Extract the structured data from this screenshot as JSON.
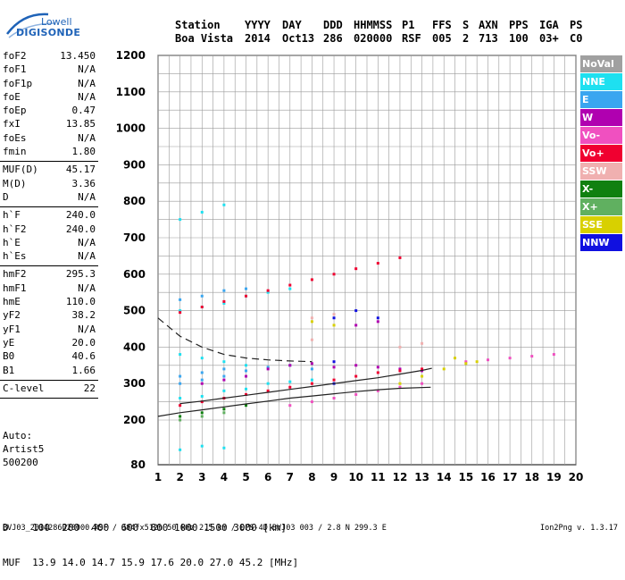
{
  "logo": {
    "brand": "Lowell",
    "name": "DIGISONDE"
  },
  "header": {
    "labels": [
      "Station",
      "YYYY",
      "DAY",
      "DDD",
      "HHMMSS",
      "P1",
      "FFS",
      "S",
      "AXN",
      "PPS",
      "IGA",
      "PS"
    ],
    "values": [
      "Boa Vista",
      "2014",
      "Oct13",
      "286",
      "020000",
      "RSF",
      "005",
      "2",
      "713",
      "100",
      "03+",
      "C0"
    ]
  },
  "params": [
    {
      "name": "foF2",
      "value": "13.450"
    },
    {
      "name": "foF1",
      "value": "N/A"
    },
    {
      "name": "foF1p",
      "value": "N/A"
    },
    {
      "name": "foE",
      "value": "N/A"
    },
    {
      "name": "foEp",
      "value": "0.47"
    },
    {
      "name": "fxI",
      "value": "13.85"
    },
    {
      "name": "foEs",
      "value": "N/A"
    },
    {
      "name": "fmin",
      "value": "1.80"
    },
    {
      "name": "MUF(D)",
      "value": "45.17"
    },
    {
      "name": "M(D)",
      "value": "3.36"
    },
    {
      "name": "D",
      "value": "N/A"
    },
    {
      "name": "h`F",
      "value": "240.0"
    },
    {
      "name": "h`F2",
      "value": "240.0"
    },
    {
      "name": "h`E",
      "value": "N/A"
    },
    {
      "name": "h`Es",
      "value": "N/A"
    },
    {
      "name": "hmF2",
      "value": "295.3"
    },
    {
      "name": "hmF1",
      "value": "N/A"
    },
    {
      "name": "hmE",
      "value": "110.0"
    },
    {
      "name": "yF2",
      "value": "38.2"
    },
    {
      "name": "yF1",
      "value": "N/A"
    },
    {
      "name": "yE",
      "value": "20.0"
    },
    {
      "name": "B0",
      "value": "40.6"
    },
    {
      "name": "B1",
      "value": "1.66"
    },
    {
      "name": "C-level",
      "value": "22"
    }
  ],
  "auto": {
    "label": "Auto:",
    "artist": "Artist5",
    "version": "500200"
  },
  "legend": [
    {
      "label": "NoVal",
      "color": "#a0a0a0"
    },
    {
      "label": "NNE",
      "color": "#1ee0f0"
    },
    {
      "label": "E",
      "color": "#3aa6f0"
    },
    {
      "label": "W",
      "color": "#b000b0"
    },
    {
      "label": "Vo-",
      "color": "#f050c0"
    },
    {
      "label": "Vo+",
      "color": "#f00030"
    },
    {
      "label": "SSW",
      "color": "#f0b0b0"
    },
    {
      "label": "X-",
      "color": "#108010"
    },
    {
      "label": "X+",
      "color": "#60b060"
    },
    {
      "label": "SSE",
      "color": "#d8d000"
    },
    {
      "label": "NNW",
      "color": "#1010e0"
    }
  ],
  "footer": {
    "d_row": "D    100  200  400  600  800 1000 1500 3000 [km]",
    "muf_row": "MUF  13.9 14.0 14.7 15.9 17.6 20.0 27.0 45.2 [MHz]",
    "file_line": "BVJ03_2014286020000.RSF / 384fx512h 50 kHz 2.5 km / DPS-4D BVJ03 003 / 2.8 N 299.3 E",
    "version": "Ion2Png v. 1.3.17"
  },
  "chart_data": {
    "type": "scatter",
    "title": "",
    "xlabel": "",
    "ylabel": "",
    "xlim": [
      1,
      20
    ],
    "ylim": [
      80,
      1200
    ],
    "xticks": [
      1,
      2,
      3,
      4,
      5,
      6,
      7,
      8,
      9,
      10,
      11,
      12,
      13,
      14,
      15,
      16,
      17,
      18,
      19,
      20
    ],
    "yticks": [
      80,
      200,
      300,
      400,
      500,
      600,
      700,
      800,
      900,
      1000,
      1100,
      1200
    ],
    "grid": true,
    "legend_position": "right",
    "series": [
      {
        "name": "NNE",
        "points": [
          [
            2,
            260
          ],
          [
            3,
            265
          ],
          [
            4,
            280
          ],
          [
            5,
            285
          ],
          [
            6,
            300
          ],
          [
            7,
            305
          ],
          [
            8,
            310
          ],
          [
            2,
            500
          ],
          [
            3,
            510
          ],
          [
            4,
            520
          ],
          [
            5,
            540
          ],
          [
            6,
            550
          ],
          [
            7,
            560
          ],
          [
            2,
            380
          ],
          [
            3,
            370
          ],
          [
            4,
            360
          ],
          [
            5,
            350
          ],
          [
            2,
            750
          ],
          [
            3,
            770
          ],
          [
            4,
            790
          ],
          [
            2,
            120
          ],
          [
            3,
            130
          ],
          [
            4,
            125
          ]
        ]
      },
      {
        "name": "E",
        "points": [
          [
            2,
            320
          ],
          [
            3,
            330
          ],
          [
            4,
            340
          ],
          [
            5,
            335
          ],
          [
            6,
            345
          ],
          [
            7,
            350
          ],
          [
            8,
            340
          ],
          [
            2,
            530
          ],
          [
            3,
            540
          ],
          [
            4,
            555
          ],
          [
            5,
            560
          ],
          [
            2,
            300
          ],
          [
            3,
            310
          ],
          [
            4,
            320
          ]
        ]
      },
      {
        "name": "W",
        "points": [
          [
            6,
            340
          ],
          [
            7,
            350
          ],
          [
            8,
            355
          ],
          [
            9,
            345
          ],
          [
            10,
            350
          ],
          [
            11,
            345
          ],
          [
            12,
            340
          ],
          [
            13,
            335
          ],
          [
            10,
            460
          ],
          [
            11,
            470
          ],
          [
            3,
            300
          ],
          [
            4,
            310
          ],
          [
            5,
            320
          ]
        ]
      },
      {
        "name": "Vo-",
        "points": [
          [
            7,
            240
          ],
          [
            8,
            250
          ],
          [
            9,
            260
          ],
          [
            10,
            270
          ],
          [
            11,
            280
          ],
          [
            12,
            290
          ],
          [
            13,
            300
          ],
          [
            15,
            360
          ],
          [
            16,
            365
          ],
          [
            17,
            370
          ],
          [
            18,
            375
          ],
          [
            19,
            380
          ]
        ]
      },
      {
        "name": "Vo+",
        "points": [
          [
            2,
            240
          ],
          [
            3,
            250
          ],
          [
            4,
            260
          ],
          [
            5,
            270
          ],
          [
            6,
            280
          ],
          [
            7,
            290
          ],
          [
            8,
            300
          ],
          [
            9,
            310
          ],
          [
            10,
            320
          ],
          [
            11,
            330
          ],
          [
            12,
            335
          ],
          [
            13,
            340
          ],
          [
            2,
            495
          ],
          [
            3,
            510
          ],
          [
            4,
            525
          ],
          [
            5,
            540
          ],
          [
            6,
            555
          ],
          [
            7,
            570
          ],
          [
            8,
            585
          ],
          [
            9,
            600
          ],
          [
            10,
            615
          ],
          [
            11,
            630
          ],
          [
            12,
            645
          ]
        ]
      },
      {
        "name": "SSW",
        "points": [
          [
            8,
            480
          ],
          [
            9,
            490
          ],
          [
            12,
            400
          ],
          [
            13,
            410
          ],
          [
            8,
            420
          ]
        ]
      },
      {
        "name": "X-",
        "points": [
          [
            2,
            210
          ],
          [
            3,
            220
          ],
          [
            4,
            230
          ],
          [
            5,
            240
          ]
        ]
      },
      {
        "name": "X+",
        "points": [
          [
            2,
            200
          ],
          [
            3,
            210
          ],
          [
            4,
            220
          ]
        ]
      },
      {
        "name": "SSE",
        "points": [
          [
            12,
            300
          ],
          [
            13,
            320
          ],
          [
            14,
            340
          ],
          [
            15,
            355
          ],
          [
            14.5,
            370
          ],
          [
            15.5,
            360
          ],
          [
            8,
            470
          ],
          [
            9,
            460
          ]
        ]
      },
      {
        "name": "NNW",
        "points": [
          [
            10,
            500
          ],
          [
            11,
            480
          ],
          [
            9,
            480
          ],
          [
            9,
            360
          ],
          [
            9,
            300
          ]
        ]
      }
    ],
    "curves": [
      {
        "name": "profile-dashed",
        "points": [
          [
            1,
            480
          ],
          [
            2,
            430
          ],
          [
            3,
            400
          ],
          [
            4,
            380
          ],
          [
            5,
            370
          ],
          [
            6,
            365
          ],
          [
            7,
            362
          ],
          [
            8,
            360
          ]
        ]
      },
      {
        "name": "trace-solid-low",
        "points": [
          [
            1,
            210
          ],
          [
            2,
            220
          ],
          [
            3,
            228
          ],
          [
            4,
            236
          ],
          [
            5,
            244
          ],
          [
            6,
            252
          ],
          [
            7,
            260
          ],
          [
            8,
            266
          ],
          [
            9,
            272
          ],
          [
            10,
            278
          ],
          [
            11,
            283
          ],
          [
            12,
            287
          ],
          [
            13.4,
            290
          ]
        ]
      },
      {
        "name": "trace-solid-high",
        "points": [
          [
            2,
            245
          ],
          [
            3,
            252
          ],
          [
            4,
            260
          ],
          [
            5,
            268
          ],
          [
            6,
            276
          ],
          [
            7,
            284
          ],
          [
            8,
            292
          ],
          [
            9,
            300
          ],
          [
            10,
            308
          ],
          [
            11,
            316
          ],
          [
            12,
            326
          ],
          [
            13,
            336
          ],
          [
            13.45,
            342
          ]
        ]
      }
    ]
  }
}
